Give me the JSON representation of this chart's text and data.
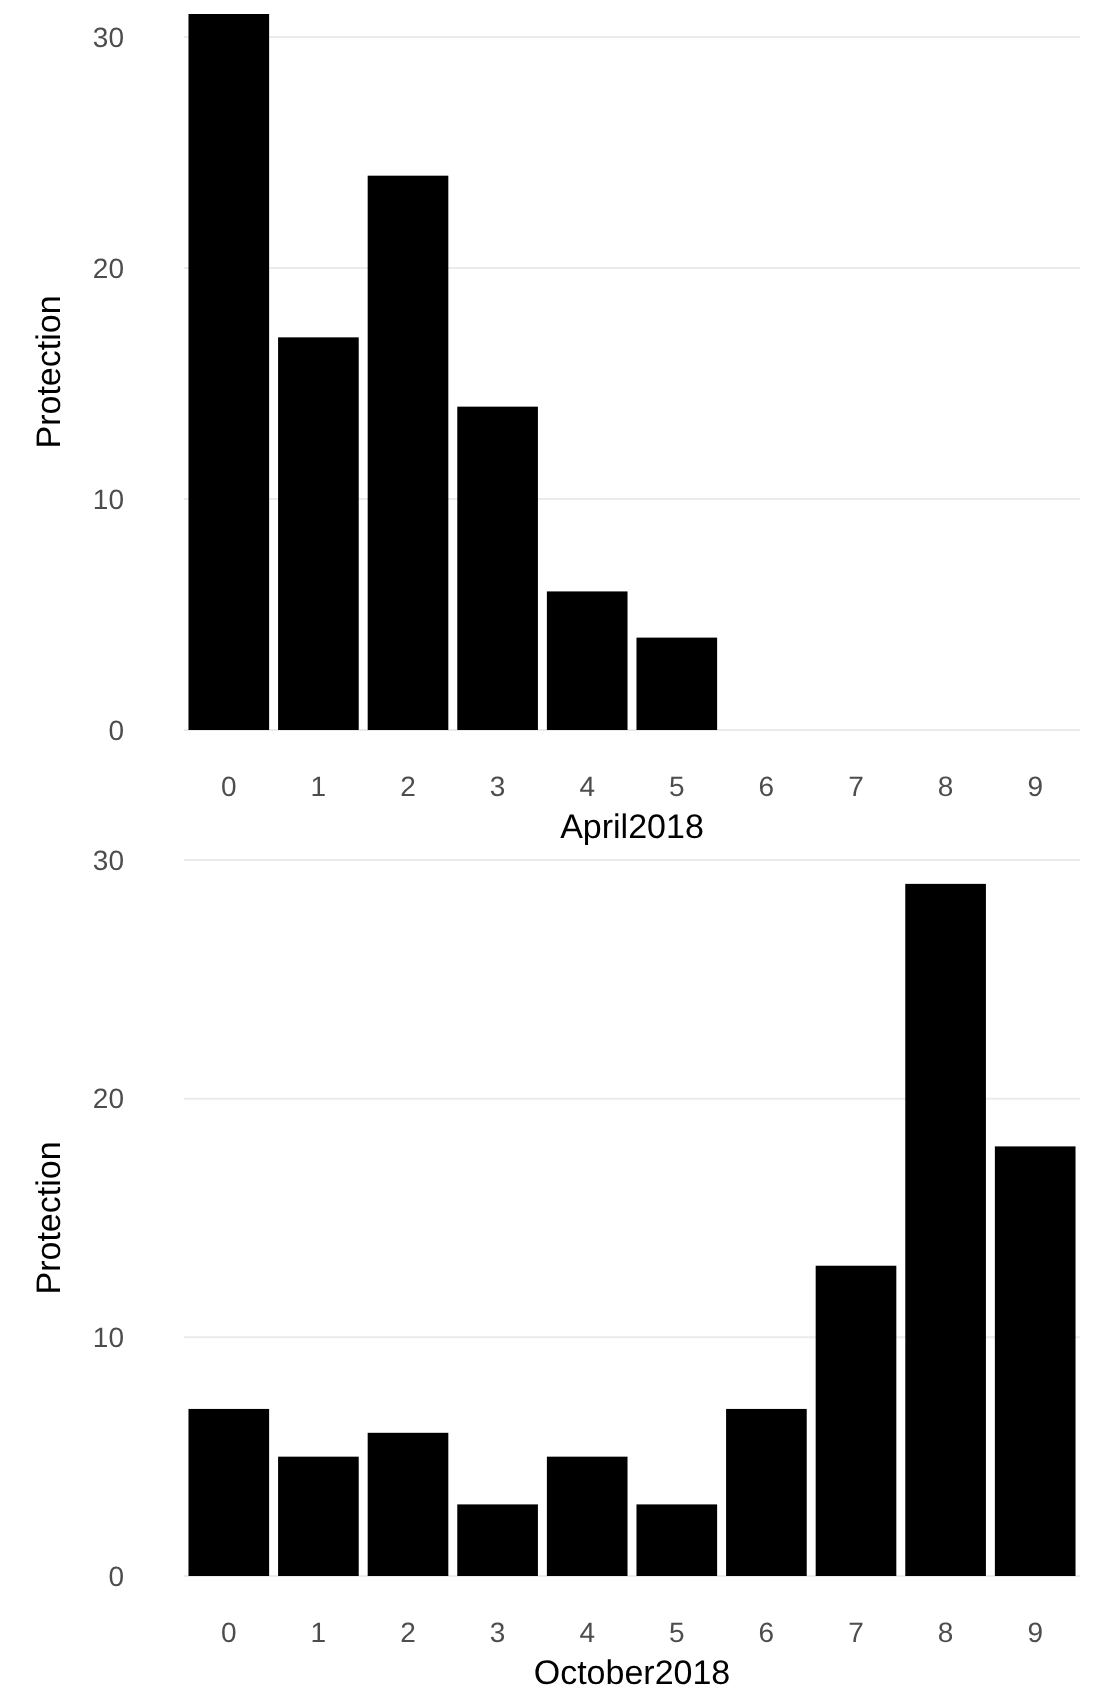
{
  "chart_data": [
    {
      "type": "bar",
      "xlabel": "April2018",
      "ylabel": "Protection",
      "categories": [
        "0",
        "1",
        "2",
        "3",
        "4",
        "5",
        "6",
        "7",
        "8",
        "9"
      ],
      "values": [
        31,
        17,
        24,
        14,
        6,
        4,
        0,
        0,
        0,
        0
      ],
      "color": "#000000",
      "ylim": [
        0,
        31
      ],
      "yticks": [
        0,
        10,
        20,
        30
      ],
      "grid": "y"
    },
    {
      "type": "bar",
      "xlabel": "October2018",
      "ylabel": "Protection",
      "categories": [
        "0",
        "1",
        "2",
        "3",
        "4",
        "5",
        "6",
        "7",
        "8",
        "9"
      ],
      "values": [
        7,
        5,
        6,
        3,
        5,
        3,
        7,
        13,
        29,
        18
      ],
      "color": "#000000",
      "ylim": [
        0,
        30
      ],
      "yticks": [
        0,
        10,
        20,
        30
      ],
      "grid": "y"
    }
  ]
}
